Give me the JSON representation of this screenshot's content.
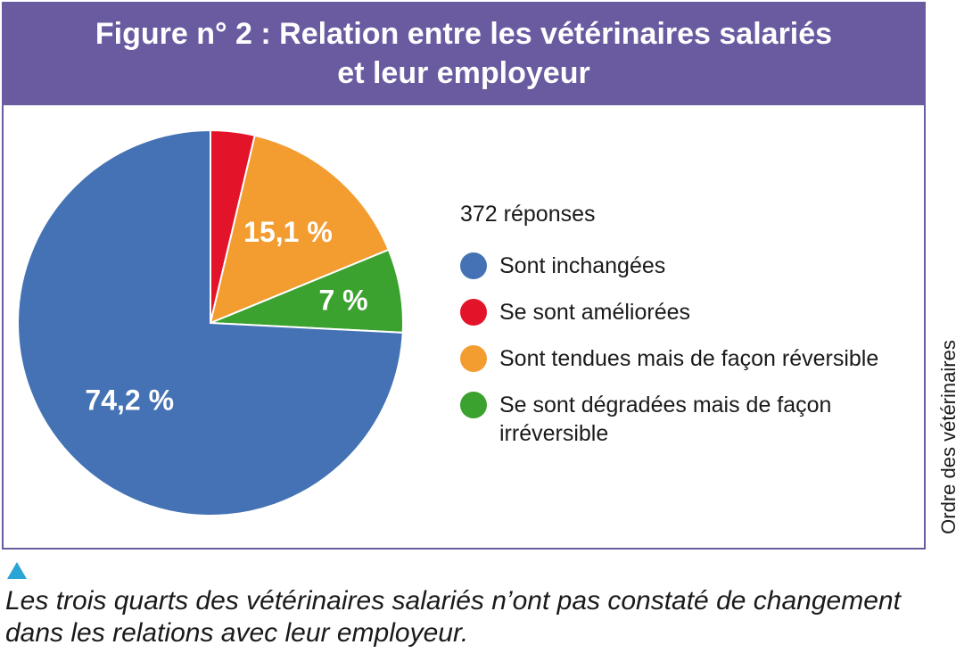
{
  "header": {
    "title_line1": "Figure n° 2 : Relation entre les vétérinaires salariés",
    "title_line2": "et leur employeur"
  },
  "chart_data": {
    "type": "pie",
    "title": "Figure n° 2 : Relation entre les vétérinaires salariés et leur employeur",
    "note": "372 réponses",
    "legend_position": "right",
    "slices": [
      {
        "label": "Sont inchangées",
        "value": 74.2,
        "value_label": "74,2 %",
        "color": "#4472b4"
      },
      {
        "label": "Se sont améliorées",
        "value": 3.7,
        "value_label": "",
        "color": "#e3142a"
      },
      {
        "label": "Sont tendues mais de façon réversible",
        "value": 15.1,
        "value_label": "15,1 %",
        "color": "#f39c2f"
      },
      {
        "label": "Se sont dégradées mais de façon irréversible",
        "value": 7.0,
        "value_label": "7 %",
        "color": "#3ba12f"
      }
    ]
  },
  "legend": {
    "note": "372 réponses",
    "items": [
      {
        "label": "Sont inchangées",
        "color": "#4472b4"
      },
      {
        "label": "Se sont améliorées",
        "color": "#e3142a"
      },
      {
        "label": "Sont tendues mais de façon réversible",
        "color": "#f39c2f"
      },
      {
        "label": "Se sont dégradées mais de façon irréversible",
        "color": "#3ba12f"
      }
    ]
  },
  "side_label": "Ordre des vétérinaires",
  "caption": "Les trois quarts des vétérinaires salariés n’ont pas constaté de changement dans les relations avec leur employeur."
}
